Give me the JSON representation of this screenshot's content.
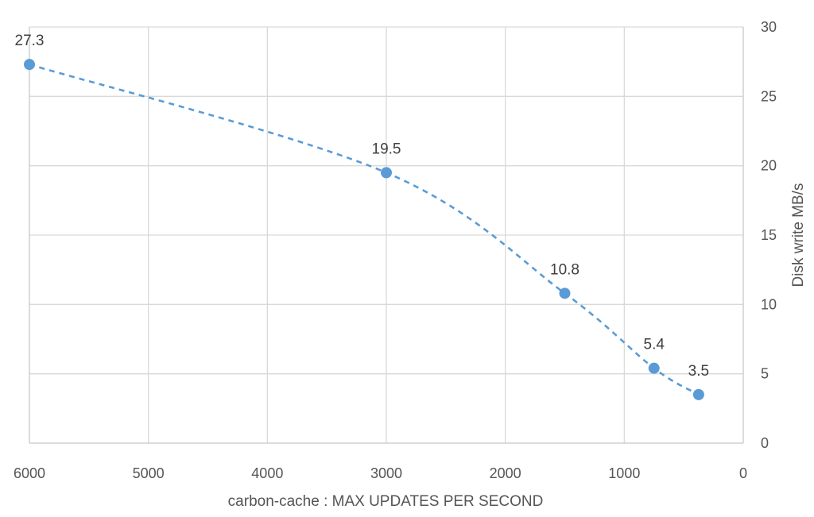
{
  "chart_data": {
    "type": "scatter",
    "title": "",
    "xlabel": "carbon-cache : MAX UPDATES PER SECOND",
    "ylabel": "Disk write MB/s",
    "x_reversed": true,
    "xlim": [
      0,
      6000
    ],
    "ylim": [
      0,
      30
    ],
    "xticks": [
      6000,
      5000,
      4000,
      3000,
      2000,
      1000,
      0
    ],
    "yticks": [
      0,
      5,
      10,
      15,
      20,
      25,
      30
    ],
    "y_axis_side": "right",
    "grid": true,
    "legend": "none",
    "trendline": "dashed curve",
    "series": [
      {
        "color": "#5b9bd5",
        "points": [
          {
            "x": 6000,
            "y": 27.3,
            "label": "27.3"
          },
          {
            "x": 3000,
            "y": 19.5,
            "label": "19.5"
          },
          {
            "x": 1500,
            "y": 10.8,
            "label": "10.8"
          },
          {
            "x": 750,
            "y": 5.4,
            "label": "5.4"
          },
          {
            "x": 375,
            "y": 3.5,
            "label": "3.5"
          }
        ]
      }
    ]
  }
}
